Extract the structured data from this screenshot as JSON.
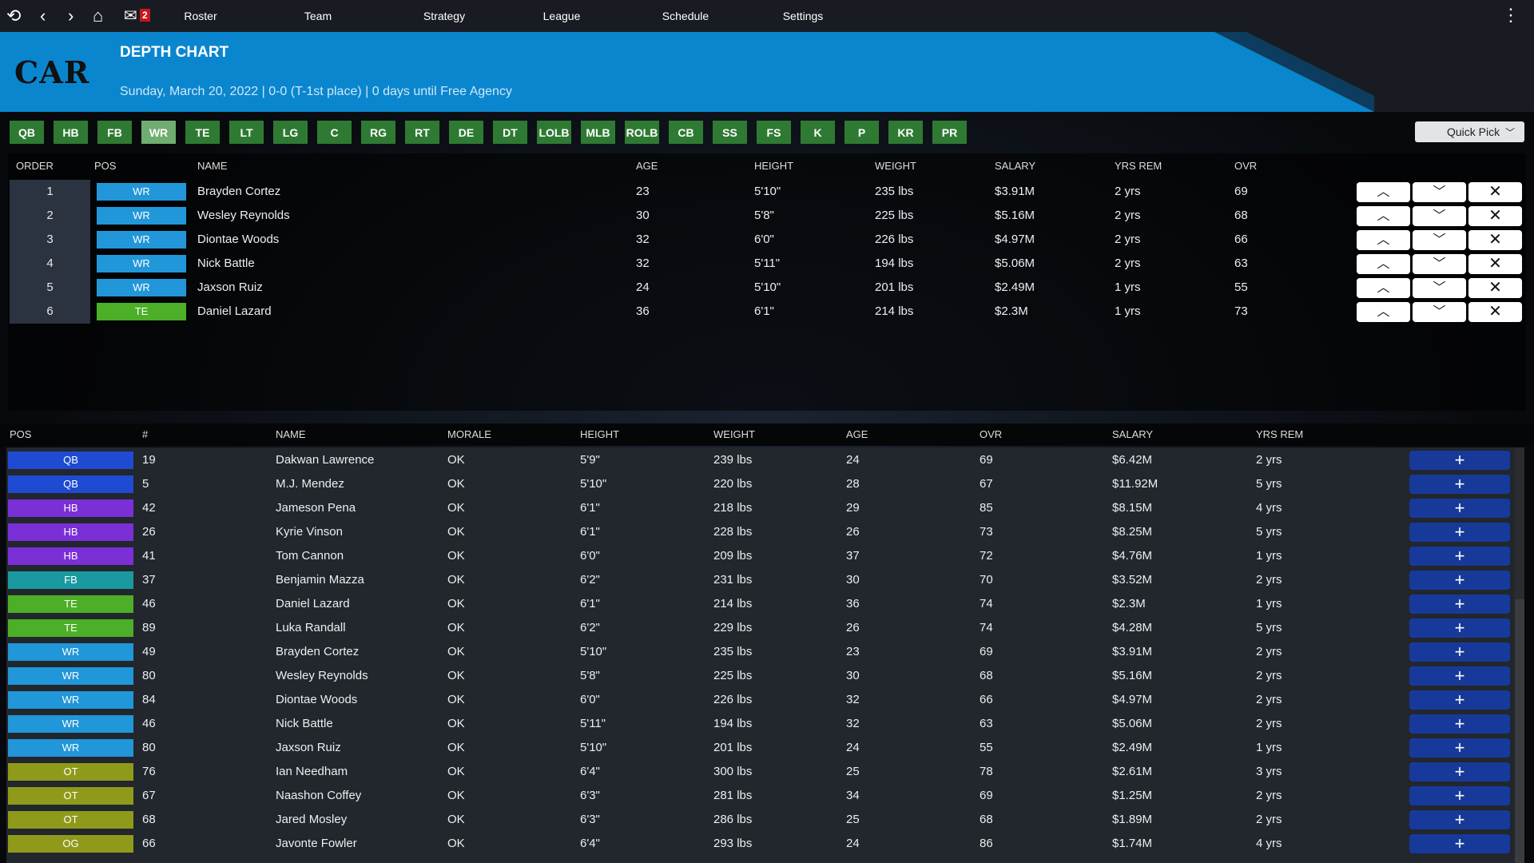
{
  "nav": {
    "icons": [
      "history-icon",
      "back-icon",
      "forward-icon",
      "home-icon",
      "mail-icon"
    ],
    "mail_count": "2",
    "items": [
      "Roster",
      "Team",
      "Strategy",
      "League",
      "Schedule",
      "Settings"
    ]
  },
  "header": {
    "team": "CAR",
    "title": "DEPTH CHART",
    "subtitle": "Sunday, March 20, 2022 | 0-0 (T-1st place) | 0 days until Free Agency",
    "accent": "#0a86cf"
  },
  "tabs": {
    "items": [
      "QB",
      "HB",
      "FB",
      "WR",
      "TE",
      "LT",
      "LG",
      "C",
      "RG",
      "RT",
      "DE",
      "DT",
      "LOLB",
      "MLB",
      "ROLB",
      "CB",
      "SS",
      "FS",
      "K",
      "P",
      "KR",
      "PR"
    ],
    "active": "WR",
    "quick_pick": "Quick Pick"
  },
  "pos_colors": {
    "QB": "#1e4bd2",
    "HB": "#7b2fd6",
    "FB": "#1a9aa0",
    "WR": "#2196d9",
    "TE": "#4caf27",
    "OT": "#8f9a1a",
    "OG": "#8f9a1a"
  },
  "depth": {
    "headers": [
      "ORDER",
      "POS",
      "NAME",
      "AGE",
      "HEIGHT",
      "WEIGHT",
      "SALARY",
      "YRS REM",
      "OVR"
    ],
    "rows": [
      [
        "1",
        "WR",
        "Brayden Cortez",
        "23",
        "5'10\"",
        "235 lbs",
        "$3.91M",
        "2 yrs",
        "69"
      ],
      [
        "2",
        "WR",
        "Wesley Reynolds",
        "30",
        "5'8\"",
        "225 lbs",
        "$5.16M",
        "2 yrs",
        "68"
      ],
      [
        "3",
        "WR",
        "Diontae Woods",
        "32",
        "6'0\"",
        "226 lbs",
        "$4.97M",
        "2 yrs",
        "66"
      ],
      [
        "4",
        "WR",
        "Nick Battle",
        "32",
        "5'11\"",
        "194 lbs",
        "$5.06M",
        "2 yrs",
        "63"
      ],
      [
        "5",
        "WR",
        "Jaxson Ruiz",
        "24",
        "5'10\"",
        "201 lbs",
        "$2.49M",
        "1 yrs",
        "55"
      ],
      [
        "6",
        "TE",
        "Daniel Lazard",
        "36",
        "6'1\"",
        "214 lbs",
        "$2.3M",
        "1 yrs",
        "73"
      ]
    ]
  },
  "roster": {
    "headers": [
      "POS",
      "#",
      "NAME",
      "MORALE",
      "HEIGHT",
      "WEIGHT",
      "AGE",
      "OVR",
      "SALARY",
      "YRS REM"
    ],
    "rows": [
      [
        "QB",
        "19",
        "Dakwan Lawrence",
        "OK",
        "5'9\"",
        "239 lbs",
        "24",
        "69",
        "$6.42M",
        "2 yrs"
      ],
      [
        "QB",
        "5",
        "M.J. Mendez",
        "OK",
        "5'10\"",
        "220 lbs",
        "28",
        "67",
        "$11.92M",
        "5 yrs"
      ],
      [
        "HB",
        "42",
        "Jameson Pena",
        "OK",
        "6'1\"",
        "218 lbs",
        "29",
        "85",
        "$8.15M",
        "4 yrs"
      ],
      [
        "HB",
        "26",
        "Kyrie Vinson",
        "OK",
        "6'1\"",
        "228 lbs",
        "26",
        "73",
        "$8.25M",
        "5 yrs"
      ],
      [
        "HB",
        "41",
        "Tom Cannon",
        "OK",
        "6'0\"",
        "209 lbs",
        "37",
        "72",
        "$4.76M",
        "1 yrs"
      ],
      [
        "FB",
        "37",
        "Benjamin Mazza",
        "OK",
        "6'2\"",
        "231 lbs",
        "30",
        "70",
        "$3.52M",
        "2 yrs"
      ],
      [
        "TE",
        "46",
        "Daniel Lazard",
        "OK",
        "6'1\"",
        "214 lbs",
        "36",
        "74",
        "$2.3M",
        "1 yrs"
      ],
      [
        "TE",
        "89",
        "Luka Randall",
        "OK",
        "6'2\"",
        "229 lbs",
        "26",
        "74",
        "$4.28M",
        "5 yrs"
      ],
      [
        "WR",
        "49",
        "Brayden Cortez",
        "OK",
        "5'10\"",
        "235 lbs",
        "23",
        "69",
        "$3.91M",
        "2 yrs"
      ],
      [
        "WR",
        "80",
        "Wesley Reynolds",
        "OK",
        "5'8\"",
        "225 lbs",
        "30",
        "68",
        "$5.16M",
        "2 yrs"
      ],
      [
        "WR",
        "84",
        "Diontae Woods",
        "OK",
        "6'0\"",
        "226 lbs",
        "32",
        "66",
        "$4.97M",
        "2 yrs"
      ],
      [
        "WR",
        "46",
        "Nick Battle",
        "OK",
        "5'11\"",
        "194 lbs",
        "32",
        "63",
        "$5.06M",
        "2 yrs"
      ],
      [
        "WR",
        "80",
        "Jaxson Ruiz",
        "OK",
        "5'10\"",
        "201 lbs",
        "24",
        "55",
        "$2.49M",
        "1 yrs"
      ],
      [
        "OT",
        "76",
        "Ian Needham",
        "OK",
        "6'4\"",
        "300 lbs",
        "25",
        "78",
        "$2.61M",
        "3 yrs"
      ],
      [
        "OT",
        "67",
        "Naashon Coffey",
        "OK",
        "6'3\"",
        "281 lbs",
        "34",
        "69",
        "$1.25M",
        "2 yrs"
      ],
      [
        "OT",
        "68",
        "Jared Mosley",
        "OK",
        "6'3\"",
        "286 lbs",
        "25",
        "68",
        "$1.89M",
        "2 yrs"
      ],
      [
        "OG",
        "66",
        "Javonte Fowler",
        "OK",
        "6'4\"",
        "293 lbs",
        "24",
        "86",
        "$1.74M",
        "4 yrs"
      ]
    ]
  }
}
